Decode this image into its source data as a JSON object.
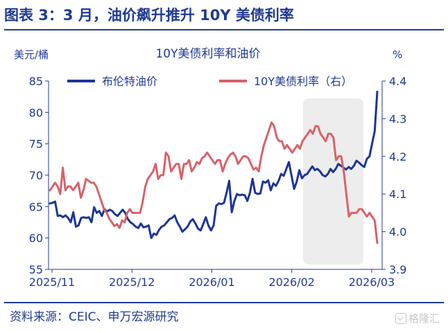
{
  "page": {
    "heading": "图表 3：3 月，油价飙升推升 10Y 美债利率",
    "source": "资料来源：CEIC、申万宏源研究",
    "watermark": "格隆汇"
  },
  "chart_data": {
    "type": "line",
    "title": "10Y美债利率和油价",
    "y_left_unit": "美元/桶",
    "y_right_unit": "%",
    "y_left": {
      "min": 55,
      "max": 85,
      "ticks": [
        55,
        60,
        65,
        70,
        75,
        80,
        85
      ]
    },
    "y_right": {
      "min": 3.9,
      "max": 4.4,
      "ticks": [
        "3.9",
        "4.0",
        "4.1",
        "4.2",
        "4.3",
        "4.4"
      ]
    },
    "x_labels": [
      "2025/11",
      "2025/12",
      "2026/01",
      "2026/02",
      "2026/03"
    ],
    "highlight_label": "",
    "grid": false,
    "legend_position": "top",
    "series": [
      {
        "name": "布伦特油价",
        "axis": "left",
        "color": "#1c3597",
        "values": [
          65.5,
          65.6,
          65.8,
          63.5,
          63.6,
          63.3,
          63.6,
          63.2,
          62.5,
          64.1,
          61.8,
          62.0,
          63.2,
          63.3,
          63.2,
          63.3,
          62.5,
          64.9,
          64.0,
          64.3,
          63.5,
          64.6,
          64.2,
          64.5,
          64.3,
          63.8,
          63.5,
          64.0,
          64.5,
          64.0,
          63.0,
          62.5,
          62.2,
          61.8,
          61.6,
          62.3,
          61.7,
          61.8,
          62.0,
          60.0,
          60.7,
          60.5,
          61.3,
          61.8,
          62.0,
          62.5,
          63.0,
          63.2,
          63.6,
          62.5,
          61.8,
          61.0,
          61.4,
          61.8,
          62.6,
          63.0,
          62.3,
          61.5,
          61.2,
          62.2,
          63.3,
          62.0,
          61.2,
          62.0,
          65.1,
          65.5,
          65.4,
          65.6,
          67.2,
          69.1,
          64.1,
          65.9,
          67.0,
          66.8,
          66.9,
          66.8,
          65.9,
          67.2,
          69.4,
          67.2,
          67.0,
          67.1,
          69.0,
          68.8,
          69.2,
          67.6,
          68.7,
          68.3,
          69.1,
          70.2,
          69.9,
          71.0,
          72.1,
          69.9,
          67.8,
          69.0,
          70.8,
          69.5,
          70.0,
          70.2,
          70.8,
          71.4,
          70.8,
          71.0,
          70.6,
          70.0,
          69.8,
          70.2,
          71.0,
          70.5,
          71.0,
          71.8,
          71.5,
          71.2,
          70.9,
          71.3,
          71.0,
          71.5,
          72.3,
          72.0,
          71.6,
          71.3,
          72.6,
          73.0,
          75.0,
          77.0,
          83.3
        ]
      },
      {
        "name": "10Y美债利率（右）",
        "axis": "right",
        "color": "#d9616a",
        "values": [
          4.11,
          4.12,
          4.13,
          4.12,
          4.1,
          4.17,
          4.11,
          4.12,
          4.12,
          4.11,
          4.12,
          4.13,
          4.09,
          4.11,
          4.14,
          4.135,
          4.13,
          4.13,
          4.12,
          4.1,
          4.08,
          4.06,
          4.05,
          4.035,
          4.025,
          4.015,
          4.02,
          4.01,
          4.03,
          4.025,
          4.05,
          4.06,
          4.05,
          4.05,
          4.05,
          4.05,
          4.08,
          4.12,
          4.14,
          4.15,
          4.16,
          4.18,
          4.14,
          4.15,
          4.15,
          4.21,
          4.2,
          4.16,
          4.17,
          4.18,
          4.18,
          4.14,
          4.18,
          4.18,
          4.19,
          4.16,
          4.17,
          4.185,
          4.18,
          4.195,
          4.2,
          4.21,
          4.2,
          4.19,
          4.18,
          4.19,
          4.19,
          4.16,
          4.18,
          4.195,
          4.205,
          4.21,
          4.2,
          4.18,
          4.19,
          4.2,
          4.2,
          4.195,
          4.18,
          4.165,
          4.17,
          4.16,
          4.2,
          4.23,
          4.25,
          4.27,
          4.29,
          4.28,
          4.25,
          4.24,
          4.24,
          4.22,
          4.23,
          4.22,
          4.21,
          4.22,
          4.23,
          4.22,
          4.24,
          4.25,
          4.26,
          4.27,
          4.26,
          4.28,
          4.28,
          4.26,
          4.25,
          4.24,
          4.26,
          4.26,
          4.25,
          4.19,
          4.2,
          4.2,
          4.16,
          4.1,
          4.04,
          4.05,
          4.05,
          4.05,
          4.06,
          4.06,
          4.05,
          4.04,
          4.05,
          4.04,
          4.03,
          3.97
        ]
      }
    ]
  }
}
